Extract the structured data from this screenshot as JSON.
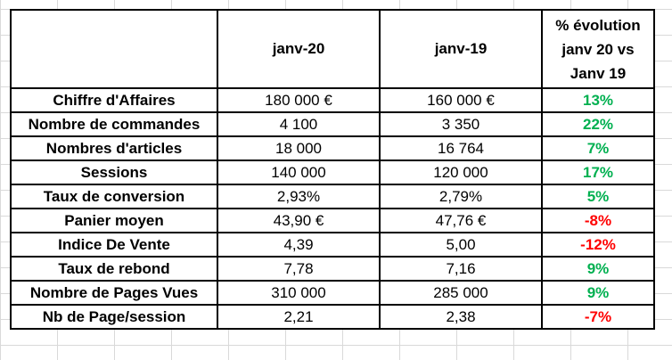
{
  "colors": {
    "positive": "#00b050",
    "negative": "#ff0000",
    "border": "#000000",
    "gridline": "#d9d9d9"
  },
  "table": {
    "headers": {
      "blank": "",
      "col1": "janv-20",
      "col2": "janv-19",
      "pct_line1": "% évolution",
      "pct_line2": "janv 20 vs",
      "pct_line3": "Janv 19"
    },
    "rows": [
      {
        "label": "Chiffre d'Affaires",
        "v20": "180 000 €",
        "v19": "160 000 €",
        "pct": "13%",
        "trend": "positive"
      },
      {
        "label": "Nombre de commandes",
        "v20": "4 100",
        "v19": "3 350",
        "pct": "22%",
        "trend": "positive"
      },
      {
        "label": "Nombres d'articles",
        "v20": "18 000",
        "v19": "16 764",
        "pct": "7%",
        "trend": "positive"
      },
      {
        "label": "Sessions",
        "v20": "140 000",
        "v19": "120 000",
        "pct": "17%",
        "trend": "positive"
      },
      {
        "label": "Taux de conversion",
        "v20": "2,93%",
        "v19": "2,79%",
        "pct": "5%",
        "trend": "positive"
      },
      {
        "label": "Panier moyen",
        "v20": "43,90 €",
        "v19": "47,76 €",
        "pct": "-8%",
        "trend": "negative"
      },
      {
        "label": "Indice De Vente",
        "v20": "4,39",
        "v19": "5,00",
        "pct": "-12%",
        "trend": "negative"
      },
      {
        "label": "Taux de rebond",
        "v20": "7,78",
        "v19": "7,16",
        "pct": "9%",
        "trend": "positive"
      },
      {
        "label": "Nombre de Pages Vues",
        "v20": "310 000",
        "v19": "285 000",
        "pct": "9%",
        "trend": "positive"
      },
      {
        "label": "Nb de Page/session",
        "v20": "2,21",
        "v19": "2,38",
        "pct": "-7%",
        "trend": "negative"
      }
    ]
  }
}
